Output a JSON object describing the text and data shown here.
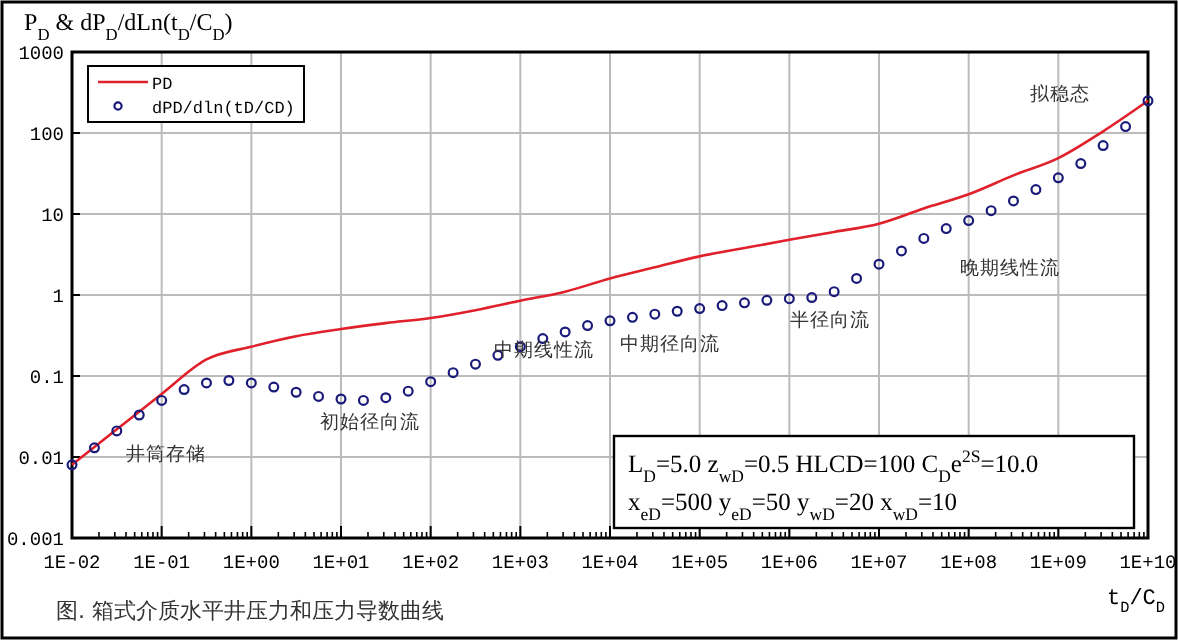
{
  "chart_data": {
    "type": "line",
    "ylabel": "P$_{D}$ & dP$_{D}$/dLn(t$_{D}$/C$_{D}$)",
    "xlabel": "t$_{D}$/C$_{D}$",
    "log": "xy",
    "grid": true,
    "legend": "top left",
    "xlim": [
      0.01,
      10000000000.0
    ],
    "ylim": [
      0.001,
      1000
    ],
    "xticks": [
      {
        "value": 0.01,
        "label": "1E-02"
      },
      {
        "value": 0.1,
        "label": "1E-01"
      },
      {
        "value": 1,
        "label": "1E+00"
      },
      {
        "value": 10,
        "label": "1E+01"
      },
      {
        "value": 100,
        "label": "1E+02"
      },
      {
        "value": 1000,
        "label": "1E+03"
      },
      {
        "value": 10000.0,
        "label": "1E+04"
      },
      {
        "value": 100000.0,
        "label": "1E+05"
      },
      {
        "value": 1000000.0,
        "label": "1E+06"
      },
      {
        "value": 10000000.0,
        "label": "1E+07"
      },
      {
        "value": 100000000.0,
        "label": "1E+08"
      },
      {
        "value": 1000000000.0,
        "label": "1E+09"
      },
      {
        "value": 10000000000.0,
        "label": "1E+10"
      }
    ],
    "yticks": [
      0.001,
      0.01,
      0.1,
      1,
      10,
      100,
      1000
    ],
    "series": [
      {
        "name": "PD",
        "color": "#e0202a",
        "marker": "none",
        "line_style": "solid",
        "x": [
          0.01,
          0.0316,
          0.1,
          0.316,
          1,
          3.16,
          10,
          31.6,
          100,
          316,
          1000,
          3160,
          10000.0,
          31600.0,
          100000.0,
          316000.0,
          1000000.0,
          3160000.0,
          10000000.0,
          31600000.0,
          100000000.0,
          316000000.0,
          1000000000.0,
          3160000000.0,
          10000000000.0
        ],
        "values": [
          0.008,
          0.022,
          0.06,
          0.16,
          0.23,
          0.31,
          0.38,
          0.45,
          0.52,
          0.65,
          0.85,
          1.1,
          1.6,
          2.2,
          3.0,
          3.8,
          4.8,
          6,
          7.6,
          11.7,
          17.5,
          30,
          49,
          105,
          250
        ]
      },
      {
        "name": "dPD/dln(tD/CD)",
        "type": "scatter",
        "color": "#1a1a7a",
        "marker": "circle",
        "x": [
          0.01,
          0.0178,
          0.0316,
          0.0562,
          0.1,
          0.178,
          0.316,
          0.562,
          1,
          1.78,
          3.16,
          5.62,
          10,
          17.8,
          31.6,
          56.2,
          100,
          178,
          316,
          562,
          1000,
          1780,
          3160,
          5620,
          10000.0,
          17800.0,
          31600.0,
          56200.0,
          100000.0,
          178000.0,
          316000.0,
          562000.0,
          1000000.0,
          1780000.0,
          3160000.0,
          5620000.0,
          10000000.0,
          17800000.0,
          31600000.0,
          56200000.0,
          100000000.0,
          178000000.0,
          316000000.0,
          562000000.0,
          1000000000.0,
          1780000000.0,
          3160000000.0,
          5620000000.0,
          10000000000.0
        ],
        "values": [
          0.008,
          0.013,
          0.021,
          0.033,
          0.05,
          0.068,
          0.082,
          0.088,
          0.082,
          0.073,
          0.063,
          0.056,
          0.052,
          0.05,
          0.054,
          0.065,
          0.085,
          0.11,
          0.14,
          0.18,
          0.23,
          0.29,
          0.35,
          0.42,
          0.48,
          0.53,
          0.58,
          0.63,
          0.68,
          0.74,
          0.8,
          0.86,
          0.9,
          0.93,
          1.1,
          1.6,
          2.4,
          3.5,
          5.0,
          6.6,
          8.3,
          11,
          14.5,
          20,
          28,
          42,
          70,
          120,
          250
        ]
      }
    ],
    "annotations": [
      "井筒存储",
      "初始径向流",
      "中期线性流",
      "中期径向流",
      "半径向流",
      "晚期线性流",
      "拟稳态",
      "L$_{D}$=5.0  z$_{wD}$=0.5  HLCD=100  C$_{D}$e$^{2S}$=10.0\nx$_{eD}$=500  y$_{eD}$=50  y$_{wD}$=20  x$_{wD}$=10",
      "图. 箱式介质水平井压力和压力导数曲线"
    ]
  }
}
